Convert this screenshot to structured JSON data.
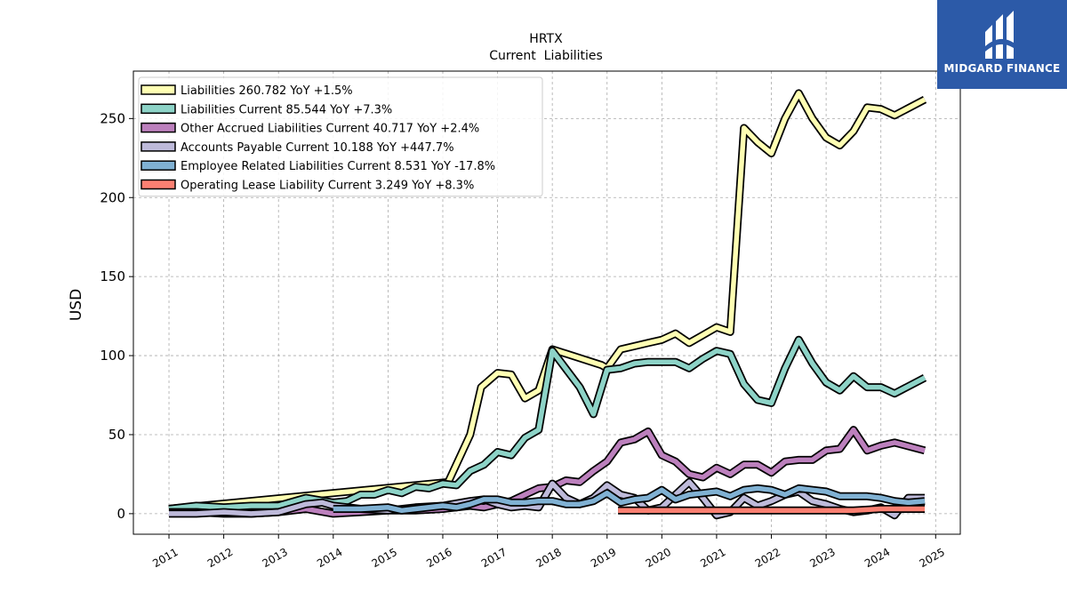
{
  "logo": {
    "text": "MIDGARD FINANCE",
    "background": "#2c5aa8"
  },
  "chart_data": {
    "type": "line",
    "title": "HRTX",
    "subtitle": "Current  Liabilities",
    "ylabel": "USD",
    "xlabel": "",
    "xlim": [
      2010.35,
      2025.45
    ],
    "ylim": [
      -13,
      280
    ],
    "yticks": [
      0,
      50,
      100,
      150,
      200,
      250
    ],
    "xticks": [
      "2011",
      "2012",
      "2013",
      "2014",
      "2015",
      "2016",
      "2017",
      "2018",
      "2019",
      "2020",
      "2021",
      "2022",
      "2023",
      "2024",
      "2025"
    ],
    "grid": true,
    "legend_position": "top-left",
    "series": [
      {
        "name": "Liabilities",
        "legend": "Liabilities  260.782 YoY +1.5%",
        "color": "#ffffb3",
        "x": [
          2011.0,
          2016.1,
          2016.5,
          2016.7,
          2017.0,
          2017.25,
          2017.5,
          2017.75,
          2018.0,
          2018.9,
          2019.0,
          2019.25,
          2019.5,
          2019.75,
          2020.0,
          2020.25,
          2020.5,
          2020.75,
          2021.0,
          2021.25,
          2021.5,
          2021.75,
          2022.0,
          2022.25,
          2022.5,
          2022.75,
          2023.0,
          2023.25,
          2023.5,
          2023.75,
          2024.0,
          2024.25,
          2024.8
        ],
        "y": [
          3,
          20,
          50,
          80,
          89,
          88,
          73,
          78,
          104,
          94,
          92,
          104,
          106,
          108,
          110,
          114,
          108,
          113,
          118,
          115,
          244,
          235,
          228,
          250,
          266,
          250,
          238,
          233,
          242,
          257,
          256,
          252,
          262
        ]
      },
      {
        "name": "Liabilities Current",
        "legend": "Liabilities Current  85.544 YoY +7.3%",
        "color": "#8dd3c7",
        "x": [
          2011.0,
          2011.5,
          2012.0,
          2012.5,
          2013.0,
          2013.5,
          2014.0,
          2014.25,
          2014.5,
          2014.75,
          2015.0,
          2015.25,
          2015.5,
          2015.75,
          2016.0,
          2016.25,
          2016.5,
          2016.75,
          2017.0,
          2017.25,
          2017.5,
          2017.75,
          2018.0,
          2018.5,
          2018.75,
          2019.0,
          2019.25,
          2019.5,
          2019.75,
          2020.0,
          2020.25,
          2020.5,
          2020.75,
          2021.0,
          2021.25,
          2021.5,
          2021.75,
          2022.0,
          2022.25,
          2022.5,
          2022.75,
          2023.0,
          2023.25,
          2023.5,
          2023.75,
          2024.0,
          2024.25,
          2024.8
        ],
        "y": [
          3,
          5,
          4,
          5,
          5,
          10,
          7,
          8,
          12,
          12,
          15,
          13,
          17,
          16,
          19,
          18,
          27,
          31,
          39,
          37,
          48,
          53,
          103,
          80,
          63,
          91,
          92,
          95,
          96,
          96,
          96,
          92,
          98,
          103,
          101,
          82,
          72,
          70,
          92,
          110,
          95,
          83,
          78,
          87,
          80,
          80,
          76,
          86
        ]
      },
      {
        "name": "Other Accrued Liabilities Current",
        "legend": "Other Accrued Liabilities Current  40.717 YoY +2.4%",
        "color": "#bc80bd",
        "x": [
          2011.0,
          2011.5,
          2012.0,
          2012.5,
          2013.0,
          2013.5,
          2014.0,
          2014.5,
          2015.0,
          2015.5,
          2016.0,
          2016.5,
          2016.75,
          2017.0,
          2017.25,
          2017.5,
          2017.75,
          2018.0,
          2018.25,
          2018.5,
          2018.75,
          2019.0,
          2019.25,
          2019.5,
          2019.75,
          2020.0,
          2020.25,
          2020.5,
          2020.75,
          2021.0,
          2021.25,
          2021.5,
          2021.75,
          2022.0,
          2022.25,
          2022.5,
          2022.75,
          2023.0,
          2023.25,
          2023.5,
          2023.75,
          2024.0,
          2024.25,
          2024.8
        ],
        "y": [
          1,
          1,
          0,
          0,
          1,
          3,
          0,
          1,
          2,
          2,
          3,
          5,
          4,
          6,
          8,
          12,
          16,
          17,
          21,
          20,
          27,
          33,
          45,
          47,
          52,
          37,
          33,
          25,
          23,
          29,
          25,
          31,
          31,
          26,
          33,
          34,
          34,
          40,
          41,
          53,
          40,
          43,
          45,
          40
        ]
      },
      {
        "name": "Accounts Payable Current",
        "legend": "Accounts Payable Current  10.188 YoY +447.7%",
        "color": "#bebada",
        "x": [
          2011.0,
          2011.5,
          2012.0,
          2012.5,
          2013.0,
          2013.5,
          2013.8,
          2014.0,
          2014.5,
          2015.0,
          2015.5,
          2016.0,
          2016.5,
          2016.75,
          2017.0,
          2017.25,
          2017.5,
          2017.75,
          2018.0,
          2018.25,
          2018.5,
          2018.75,
          2019.0,
          2019.25,
          2019.5,
          2019.75,
          2020.0,
          2020.25,
          2020.5,
          2020.75,
          2021.0,
          2021.25,
          2021.5,
          2021.75,
          2022.0,
          2022.25,
          2022.5,
          2022.75,
          2023.0,
          2023.25,
          2023.5,
          2023.75,
          2024.0,
          2024.25,
          2024.5,
          2024.8
        ],
        "y": [
          0,
          0,
          1,
          0,
          1,
          6,
          7,
          5,
          3,
          2,
          4,
          5,
          8,
          9,
          6,
          4,
          5,
          4,
          19,
          10,
          6,
          10,
          18,
          12,
          10,
          2,
          4,
          12,
          20,
          10,
          -1,
          1,
          10,
          5,
          8,
          12,
          14,
          8,
          6,
          3,
          1,
          2,
          4,
          -1,
          10,
          10
        ]
      },
      {
        "name": "Employee Related Liabilities Current",
        "legend": "Employee Related Liabilities Current  8.531 YoY -17.8%",
        "color": "#80b1d3",
        "x": [
          2014.0,
          2014.5,
          2015.0,
          2015.25,
          2015.5,
          2016.0,
          2016.25,
          2016.5,
          2016.75,
          2017.0,
          2017.25,
          2017.5,
          2017.75,
          2018.0,
          2018.25,
          2018.5,
          2018.75,
          2019.0,
          2019.25,
          2019.5,
          2019.75,
          2020.0,
          2020.25,
          2020.5,
          2020.75,
          2021.0,
          2021.25,
          2021.5,
          2021.75,
          2022.0,
          2022.25,
          2022.5,
          2022.75,
          2023.0,
          2023.25,
          2023.5,
          2023.75,
          2024.0,
          2024.25,
          2024.5,
          2024.8
        ],
        "y": [
          3,
          3,
          4,
          2,
          3,
          5,
          4,
          6,
          9,
          9,
          7,
          7,
          8,
          8,
          6,
          6,
          8,
          13,
          7,
          9,
          10,
          15,
          9,
          12,
          13,
          14,
          11,
          15,
          16,
          15,
          12,
          16,
          15,
          14,
          11,
          11,
          11,
          10,
          8,
          7,
          8
        ]
      },
      {
        "name": "Operating Lease Liability Current",
        "legend": "Operating Lease Liability Current  3.249 YoY +8.3%",
        "color": "#fb8072",
        "x": [
          2019.2,
          2019.5,
          2020.0,
          2020.5,
          2021.0,
          2021.5,
          2022.0,
          2022.5,
          2023.0,
          2023.5,
          2024.0,
          2024.5,
          2024.8
        ],
        "y": [
          2,
          2,
          2,
          2,
          2,
          2,
          2,
          2,
          2,
          2,
          3,
          3,
          3
        ]
      }
    ]
  }
}
